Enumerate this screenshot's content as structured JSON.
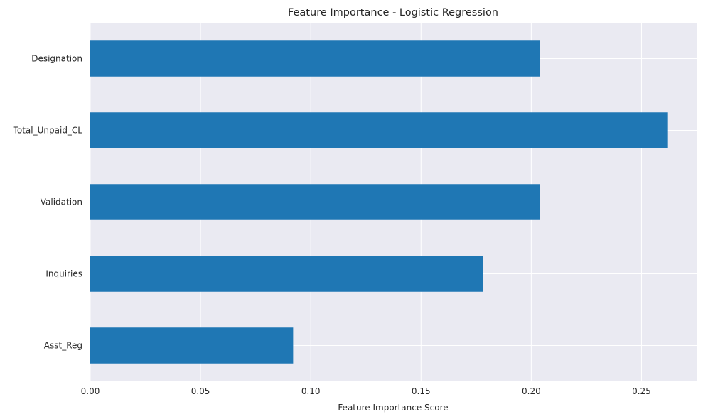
{
  "chart_data": {
    "type": "bar",
    "orientation": "horizontal",
    "title": "Feature Importance - Logistic Regression",
    "xlabel": "Feature Importance Score",
    "ylabel": "",
    "categories": [
      "Designation",
      "Total_Unpaid_CL",
      "Validation",
      "Inquiries",
      "Asst_Reg"
    ],
    "values": [
      0.204,
      0.262,
      0.204,
      0.178,
      0.092
    ],
    "xlim": [
      0,
      0.275
    ],
    "xticks": [
      0.0,
      0.05,
      0.1,
      0.15,
      0.2,
      0.25
    ],
    "xtick_labels": [
      "0.00",
      "0.05",
      "0.10",
      "0.15",
      "0.20",
      "0.25"
    ],
    "grid": true,
    "legend": "none",
    "colors": {
      "bar": "#1f77b4",
      "plot_background": "#eaeaf2",
      "grid": "#ffffff"
    }
  }
}
